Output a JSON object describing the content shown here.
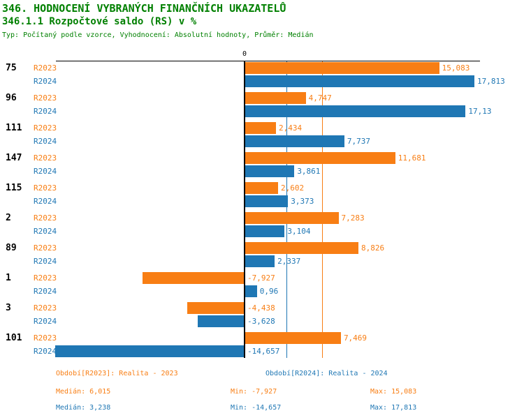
{
  "header": {
    "title": "346. HODNOCENÍ VYBRANÝCH FINANČNÍCH UKAZATELŮ",
    "subtitle": "346.1.1 Rozpočtové saldo (RS) v %",
    "meta": "Typ: Počítaný podle vzorce, Vyhodnocení: Absolutní hodnoty, Průměr: Medián"
  },
  "colors": {
    "title_green": "#008000",
    "r2023_orange": "#F87E14",
    "r2024_blue": "#1F77B4",
    "axis_black": "#000000"
  },
  "chart_data": {
    "type": "bar",
    "orientation": "horizontal",
    "title": "346.1.1 Rozpočtové saldo (RS) v %",
    "xlabel": "",
    "ylabel": "",
    "zero_tick_label": "0",
    "xlim": [
      -14.657,
      17.813
    ],
    "grid": false,
    "categories": [
      "75",
      "96",
      "111",
      "147",
      "115",
      "2",
      "89",
      "1",
      "3",
      "101"
    ],
    "series": [
      {
        "name": "R2023",
        "color_key": "r2023_orange",
        "values": [
          15.083,
          4.747,
          2.434,
          11.681,
          2.602,
          7.283,
          8.826,
          -7.927,
          -4.438,
          7.469
        ],
        "labels": [
          "15,083",
          "4,747",
          "2,434",
          "11,681",
          "2,602",
          "7,283",
          "8,826",
          "-7,927",
          "-4,438",
          "7,469"
        ]
      },
      {
        "name": "R2024",
        "color_key": "r2024_blue",
        "values": [
          17.813,
          17.13,
          7.737,
          3.861,
          3.373,
          3.104,
          2.337,
          0.96,
          -3.628,
          -14.657
        ],
        "labels": [
          "17,813",
          "17,13",
          "7,737",
          "3,861",
          "3,373",
          "3,104",
          "2,337",
          "0,96",
          "-3,628",
          "-14,657"
        ]
      }
    ],
    "median_lines": [
      {
        "series": "R2023",
        "value": 6.015,
        "color_key": "r2023_orange"
      },
      {
        "series": "R2024",
        "value": 3.238,
        "color_key": "r2024_blue"
      }
    ]
  },
  "footer": {
    "period_r2023": "Období[R2023]: Realita - 2023",
    "period_r2024": "Období[R2024]: Realita - 2024",
    "stats_r2023": {
      "median": "Medián: 6,015",
      "min": "Min: -7,927",
      "max": "Max: 15,083"
    },
    "stats_r2024": {
      "median": "Medián: 3,238",
      "min": "Min: -14,657",
      "max": "Max: 17,813"
    }
  }
}
